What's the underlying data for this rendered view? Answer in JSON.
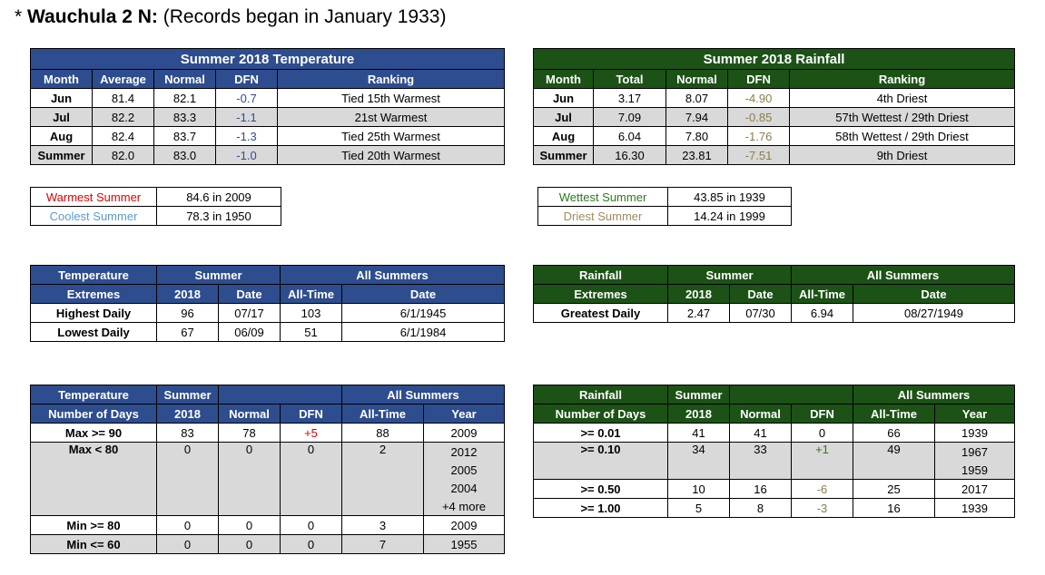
{
  "title": {
    "station": "Wauchula 2 N:",
    "prefix": "* ",
    "note": "(Records began in January 1933)"
  },
  "temp_table": {
    "title": "Summer 2018 Temperature",
    "headers": [
      "Month",
      "Average",
      "Normal",
      "DFN",
      "Ranking"
    ],
    "rows": [
      {
        "month": "Jun",
        "avg": "81.4",
        "normal": "82.1",
        "dfn": "-0.7",
        "rank": "Tied 15th Warmest"
      },
      {
        "month": "Jul",
        "avg": "82.2",
        "normal": "83.3",
        "dfn": "-1.1",
        "rank": "21st Warmest"
      },
      {
        "month": "Aug",
        "avg": "82.4",
        "normal": "83.7",
        "dfn": "-1.3",
        "rank": "Tied 25th Warmest"
      },
      {
        "month": "Summer",
        "avg": "82.0",
        "normal": "83.0",
        "dfn": "-1.0",
        "rank": "Tied 20th Warmest"
      }
    ]
  },
  "rain_table": {
    "title": "Summer 2018 Rainfall",
    "headers": [
      "Month",
      "Total",
      "Normal",
      "DFN",
      "Ranking"
    ],
    "rows": [
      {
        "month": "Jun",
        "total": "3.17",
        "normal": "8.07",
        "dfn": "-4.90",
        "rank": "4th Driest"
      },
      {
        "month": "Jul",
        "total": "7.09",
        "normal": "7.94",
        "dfn": "-0.85",
        "rank": "57th Wettest / 29th Driest"
      },
      {
        "month": "Aug",
        "total": "6.04",
        "normal": "7.80",
        "dfn": "-1.76",
        "rank": "58th Wettest / 29th Driest"
      },
      {
        "month": "Summer",
        "total": "16.30",
        "normal": "23.81",
        "dfn": "-7.51",
        "rank": "9th Driest"
      }
    ]
  },
  "temp_records": [
    {
      "label": "Warmest Summer",
      "value": "84.6 in 2009"
    },
    {
      "label": "Coolest Summer",
      "value": "78.3 in 1950"
    }
  ],
  "rain_records": [
    {
      "label": "Wettest Summer",
      "value": "43.85 in 1939"
    },
    {
      "label": "Driest Summer",
      "value": "14.24 in 1999"
    }
  ],
  "temp_extremes": {
    "h1": [
      "Temperature",
      "Summer",
      "All Summers"
    ],
    "h2": [
      "Extremes",
      "2018",
      "Date",
      "All-Time",
      "Date"
    ],
    "rows": [
      {
        "label": "Highest Daily",
        "v2018": "96",
        "date": "07/17",
        "alltime": "103",
        "adate": "6/1/1945"
      },
      {
        "label": "Lowest Daily",
        "v2018": "67",
        "date": "06/09",
        "alltime": "51",
        "adate": "6/1/1984"
      }
    ]
  },
  "rain_extremes": {
    "h1": [
      "Rainfall",
      "Summer",
      "All Summers"
    ],
    "h2": [
      "Extremes",
      "2018",
      "Date",
      "All-Time",
      "Date"
    ],
    "rows": [
      {
        "label": "Greatest Daily",
        "v2018": "2.47",
        "date": "07/30",
        "alltime": "6.94",
        "adate": "08/27/1949"
      }
    ]
  },
  "temp_days": {
    "h1": [
      "Temperature",
      "Summer",
      "All Summers"
    ],
    "h2": [
      "Number of Days",
      "2018",
      "Normal",
      "DFN",
      "All-Time",
      "Year"
    ],
    "rows": [
      {
        "label": "Max >= 90",
        "v2018": "83",
        "normal": "78",
        "dfn": "+5",
        "alltime": "88",
        "years": [
          "2009"
        ]
      },
      {
        "label": "Max < 80",
        "v2018": "0",
        "normal": "0",
        "dfn": "0",
        "alltime": "2",
        "years": [
          "2012",
          "2005",
          "2004",
          "+4 more"
        ]
      },
      {
        "label": "Min >= 80",
        "v2018": "0",
        "normal": "0",
        "dfn": "0",
        "alltime": "3",
        "years": [
          "2009"
        ]
      },
      {
        "label": "Min <= 60",
        "v2018": "0",
        "normal": "0",
        "dfn": "0",
        "alltime": "7",
        "years": [
          "1955"
        ]
      }
    ]
  },
  "rain_days": {
    "h1": [
      "Rainfall",
      "Summer",
      "All Summers"
    ],
    "h2": [
      "Number of Days",
      "2018",
      "Normal",
      "DFN",
      "All-Time",
      "Year"
    ],
    "rows": [
      {
        "label": ">= 0.01",
        "v2018": "41",
        "normal": "41",
        "dfn": "0",
        "alltime": "66",
        "years": [
          "1939"
        ]
      },
      {
        "label": ">= 0.10",
        "v2018": "34",
        "normal": "33",
        "dfn": "+1",
        "alltime": "49",
        "years": [
          "1967",
          "1959"
        ]
      },
      {
        "label": ">= 0.50",
        "v2018": "10",
        "normal": "16",
        "dfn": "-6",
        "alltime": "25",
        "years": [
          "2017"
        ]
      },
      {
        "label": ">= 1.00",
        "v2018": "5",
        "normal": "8",
        "dfn": "-3",
        "alltime": "16",
        "years": [
          "1939"
        ]
      }
    ]
  }
}
